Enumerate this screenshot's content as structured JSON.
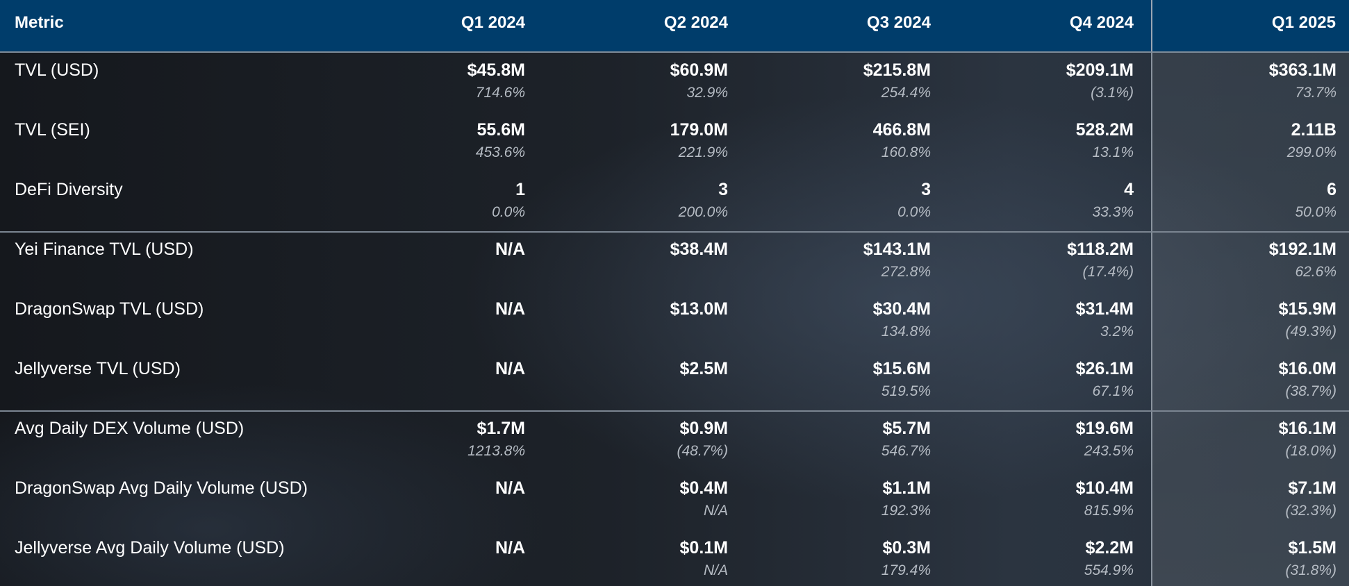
{
  "header": {
    "metric_label": "Metric",
    "quarters": [
      "Q1 2024",
      "Q2 2024",
      "Q3 2024",
      "Q4 2024",
      "Q1 2025"
    ]
  },
  "rows": [
    {
      "label": "TVL (USD)",
      "values": [
        "$45.8M",
        "$60.9M",
        "$215.8M",
        "$209.1M",
        "$363.1M"
      ],
      "changes": [
        "714.6%",
        "32.9%",
        "254.4%",
        "(3.1%)",
        "73.7%"
      ]
    },
    {
      "label": "TVL (SEI)",
      "values": [
        "55.6M",
        "179.0M",
        "466.8M",
        "528.2M",
        "2.11B"
      ],
      "changes": [
        "453.6%",
        "221.9%",
        "160.8%",
        "13.1%",
        "299.0%"
      ]
    },
    {
      "label": "DeFi Diversity",
      "values": [
        "1",
        "3",
        "3",
        "4",
        "6"
      ],
      "changes": [
        "0.0%",
        "200.0%",
        "0.0%",
        "33.3%",
        "50.0%"
      ]
    },
    {
      "label": "Yei Finance TVL (USD)",
      "values": [
        "N/A",
        "$38.4M",
        "$143.1M",
        "$118.2M",
        "$192.1M"
      ],
      "changes": [
        "",
        "",
        "272.8%",
        "(17.4%)",
        "62.6%"
      ]
    },
    {
      "label": "DragonSwap TVL (USD)",
      "values": [
        "N/A",
        "$13.0M",
        "$30.4M",
        "$31.4M",
        "$15.9M"
      ],
      "changes": [
        "",
        "",
        "134.8%",
        "3.2%",
        "(49.3%)"
      ]
    },
    {
      "label": "Jellyverse TVL (USD)",
      "values": [
        "N/A",
        "$2.5M",
        "$15.6M",
        "$26.1M",
        "$16.0M"
      ],
      "changes": [
        "",
        "",
        "519.5%",
        "67.1%",
        "(38.7%)"
      ]
    },
    {
      "label": "Avg Daily DEX Volume (USD)",
      "values": [
        "$1.7M",
        "$0.9M",
        "$5.7M",
        "$19.6M",
        "$16.1M"
      ],
      "changes": [
        "1213.8%",
        "(48.7%)",
        "546.7%",
        "243.5%",
        "(18.0%)"
      ]
    },
    {
      "label": "DragonSwap Avg Daily Volume (USD)",
      "values": [
        "N/A",
        "$0.4M",
        "$1.1M",
        "$10.4M",
        "$7.1M"
      ],
      "changes": [
        "",
        "N/A",
        "192.3%",
        "815.9%",
        "(32.3%)"
      ]
    },
    {
      "label": "Jellyverse Avg Daily Volume (USD)",
      "values": [
        "N/A",
        "$0.1M",
        "$0.3M",
        "$2.2M",
        "$1.5M"
      ],
      "changes": [
        "",
        "N/A",
        "179.4%",
        "554.9%",
        "(31.8%)"
      ]
    }
  ]
}
